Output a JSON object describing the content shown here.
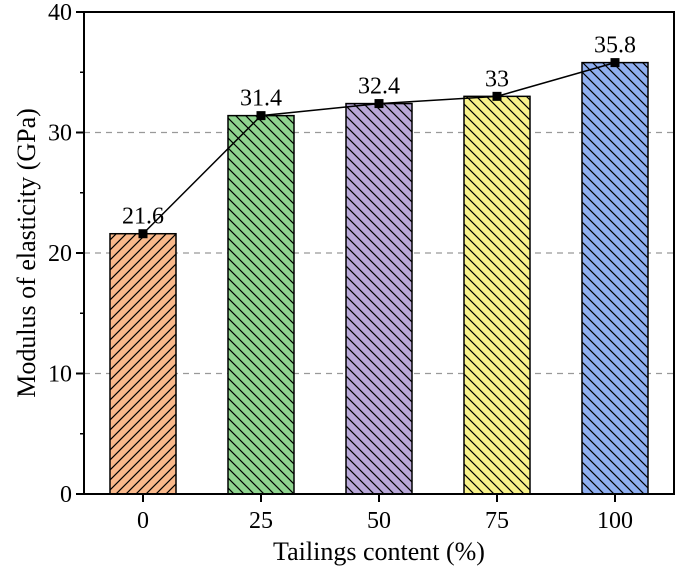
{
  "chart_data": {
    "type": "bar",
    "categories": [
      "0",
      "25",
      "50",
      "75",
      "100"
    ],
    "values": [
      21.6,
      31.4,
      32.4,
      33,
      35.8
    ],
    "data_labels": [
      "21.6",
      "31.4",
      "32.4",
      "33",
      "35.8"
    ],
    "xlabel": "Tailings content (%)",
    "ylabel": "Modulus of elasticity (GPa)",
    "ylim": [
      0,
      40
    ],
    "yticks": [
      0,
      10,
      20,
      30,
      40
    ],
    "grid": "horizontal dashed",
    "overlay_line": true,
    "bar_colors": [
      "#F9B88A",
      "#8FD48F",
      "#B8A8D8",
      "#F8F28A",
      "#8FAFF0"
    ],
    "hatch": "diagonal",
    "line_color": "#000000"
  }
}
